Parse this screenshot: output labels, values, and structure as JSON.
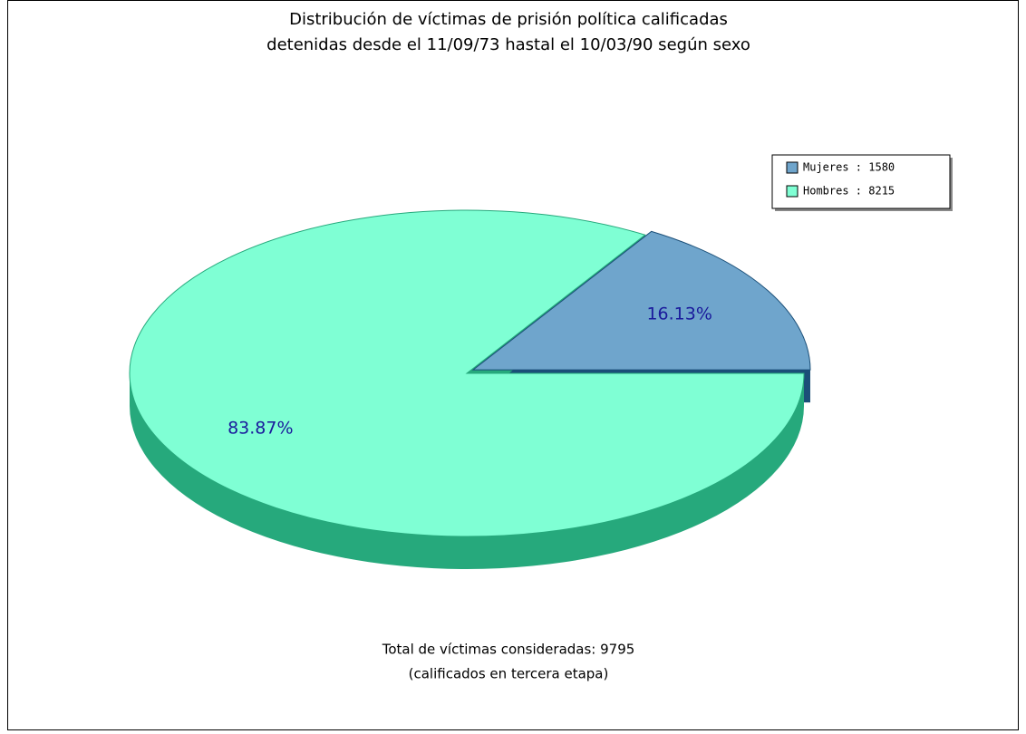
{
  "chart_data": {
    "type": "pie",
    "title": [
      "Distribución de víctimas de prisión política calificadas",
      "detenidas desde el 11/09/73 hastal el 10/03/90 según sexo"
    ],
    "categories": [
      "Mujeres",
      "Hombres"
    ],
    "legend_labels": [
      "Mujeres : 1580",
      "Hombres : 8215"
    ],
    "values": [
      1580,
      8215
    ],
    "value_labels": [
      "16.13%",
      "83.87%"
    ],
    "colors": [
      "#6fa5cc",
      "#7fffd4"
    ],
    "side_colors": [
      "#1b4f78",
      "#26a97c"
    ],
    "legend": "top-right",
    "footnote": [
      "Total de víctimas consideradas: 9795",
      "(calificados en tercera etapa)"
    ]
  }
}
